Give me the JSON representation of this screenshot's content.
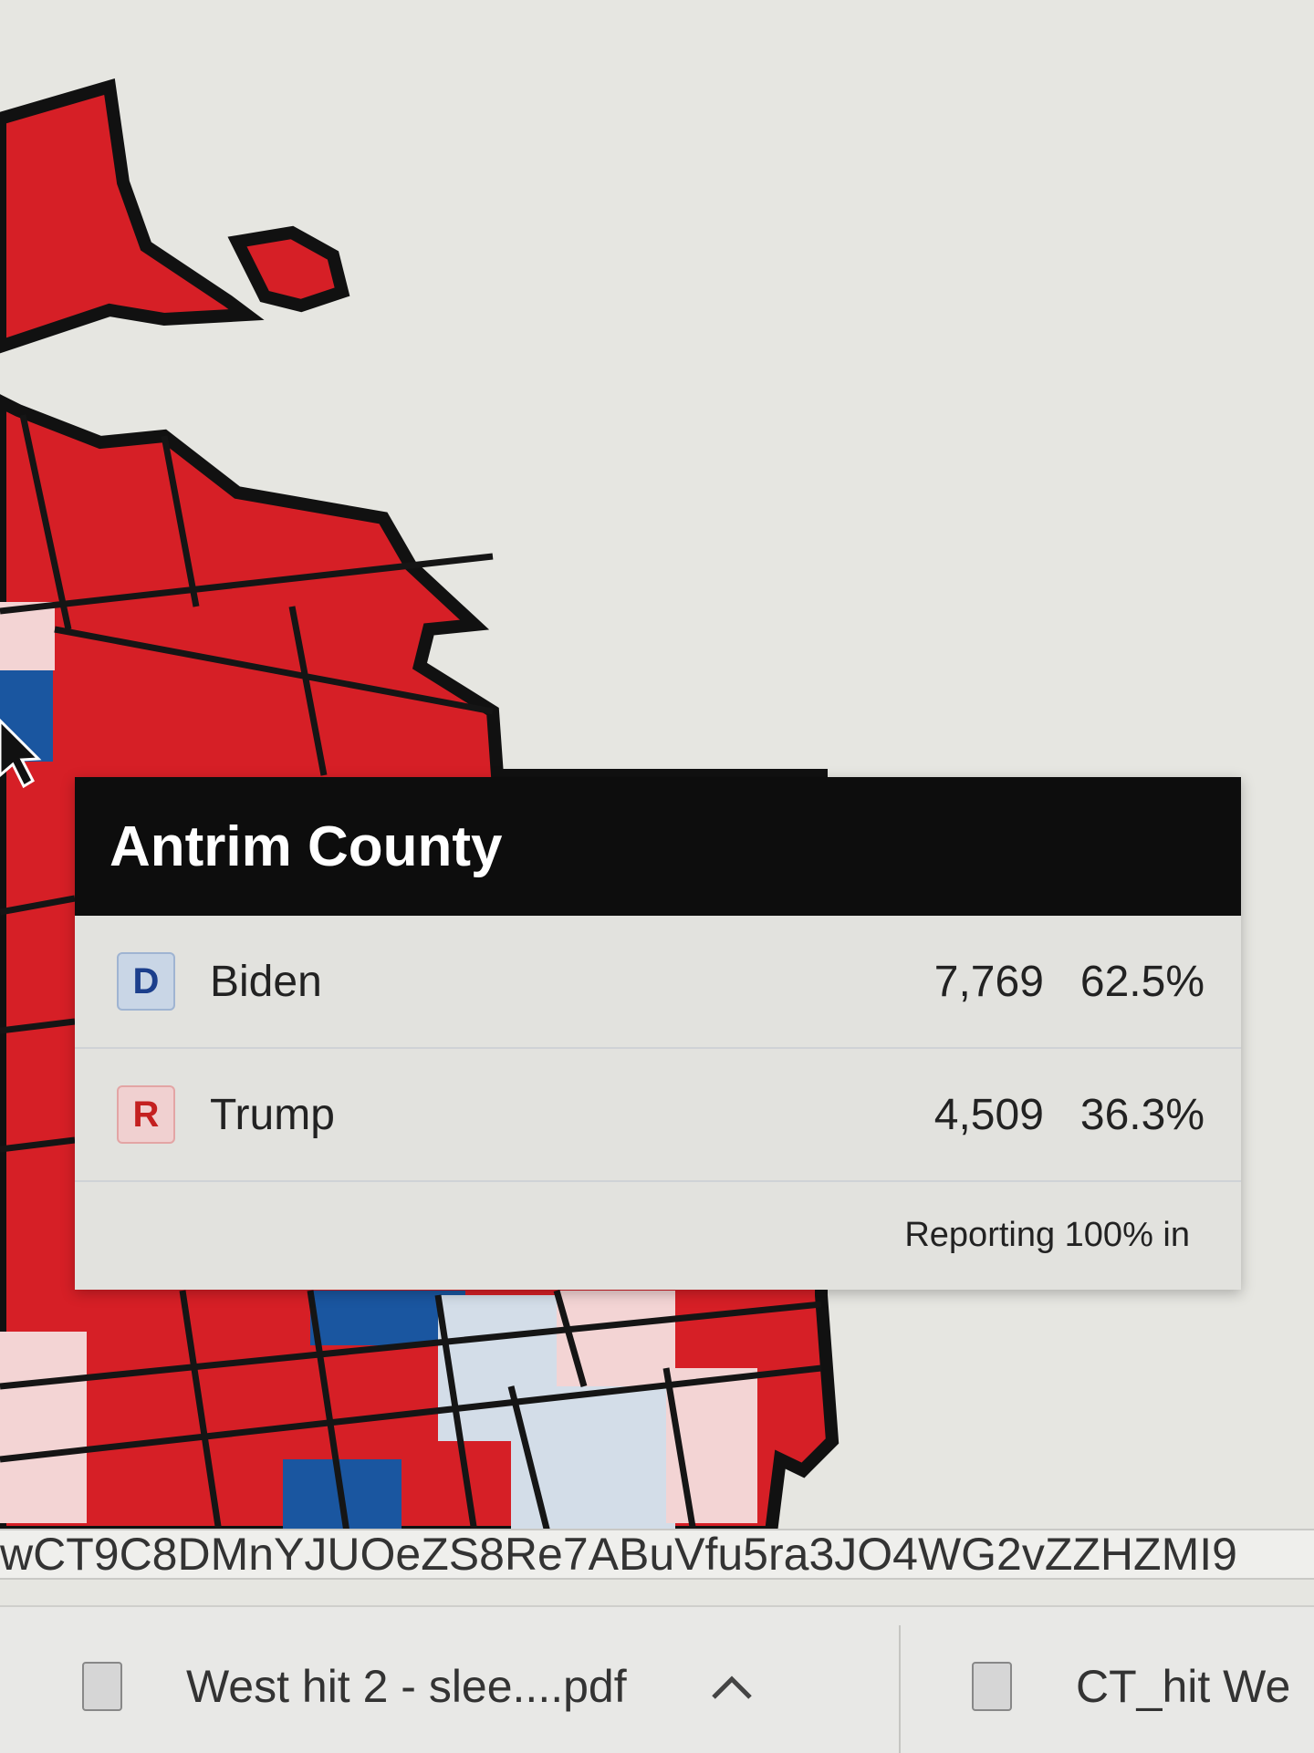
{
  "tooltip": {
    "title": "Antrim County",
    "rows": [
      {
        "party": "D",
        "name": "Biden",
        "votes": "7,769",
        "percent": "62.5%"
      },
      {
        "party": "R",
        "name": "Trump",
        "votes": "4,509",
        "percent": "36.3%"
      }
    ],
    "footer": "Reporting 100% in"
  },
  "address_bar": {
    "url": "wCT9C8DMnYJUOeZS8Re7ABuVfu5ra3JO4WG2vZZHZMI9"
  },
  "downloads": [
    {
      "name": "West hit 2 - slee....pdf"
    },
    {
      "name": "CT_hit We"
    }
  ]
}
